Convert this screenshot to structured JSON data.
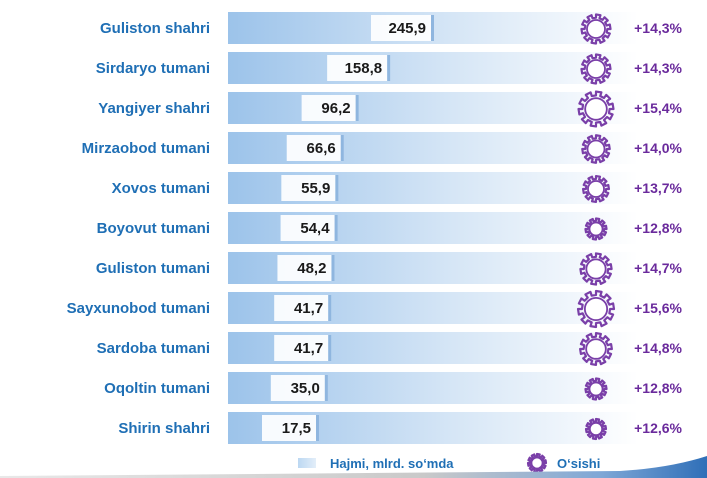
{
  "chart_data": {
    "type": "bar",
    "orientation": "horizontal",
    "categories": [
      "Guliston shahri",
      "Sirdaryo tumani",
      "Yangiyer shahri",
      "Mirzaobod tumani",
      "Xovos tumani",
      "Boyovut tumani",
      "Guliston tumani",
      "Sayxunobod tumani",
      "Sardoba tumani",
      "Oqoltin tumani",
      "Shirin shahri"
    ],
    "series": [
      {
        "name": "Hajmi, mlrd. so‘mda",
        "values": [
          245.9,
          158.8,
          96.2,
          66.6,
          55.9,
          54.4,
          48.2,
          41.7,
          41.7,
          35.0,
          17.5
        ],
        "labels": [
          "245,9",
          "158,8",
          "96,2",
          "66,6",
          "55,9",
          "54,4",
          "48,2",
          "41,7",
          "41,7",
          "35,0",
          "17,5"
        ],
        "color": "#b8d4f0"
      },
      {
        "name": "O‘sishi",
        "values": [
          14.3,
          14.3,
          15.4,
          14.0,
          13.7,
          12.8,
          14.7,
          15.6,
          14.8,
          12.8,
          12.6
        ],
        "labels": [
          "+14,3%",
          "+14,3%",
          "+15,4%",
          "+14,0%",
          "+13,7%",
          "+12,8%",
          "+14,7%",
          "+15,6%",
          "+14,8%",
          "+12,8%",
          "+12,6%"
        ],
        "color": "#7a3fa8"
      }
    ],
    "legend_position": "bottom",
    "grid": false
  }
}
